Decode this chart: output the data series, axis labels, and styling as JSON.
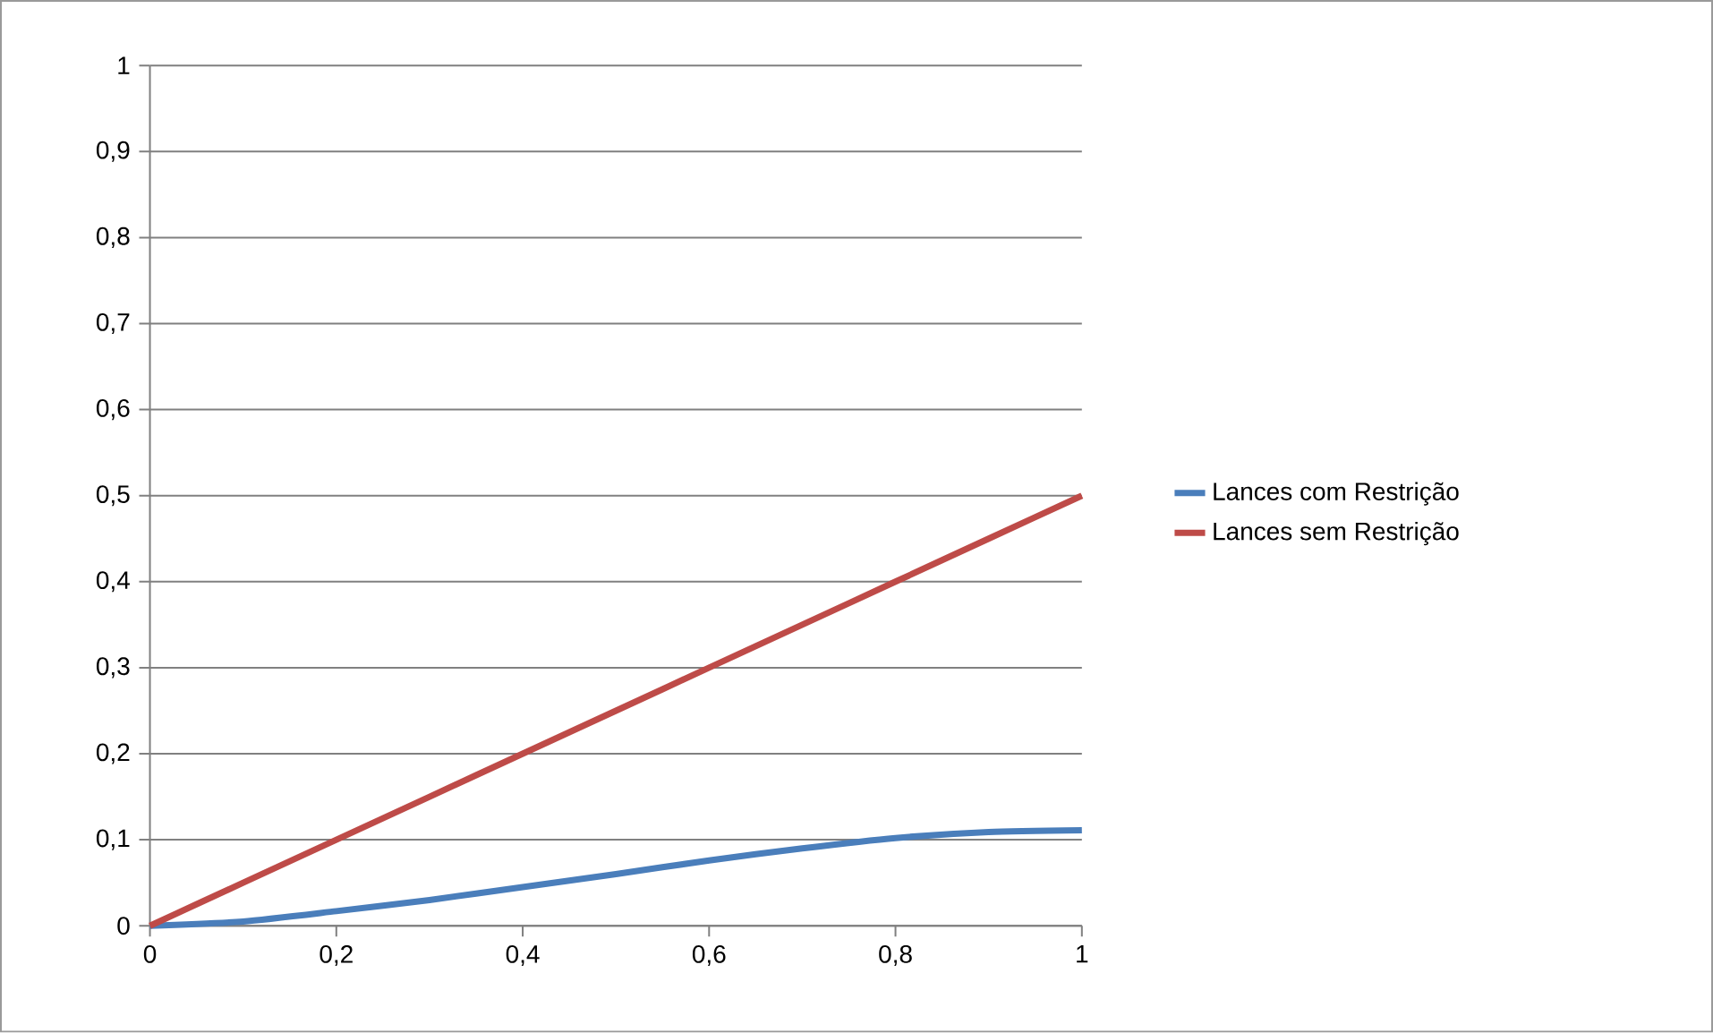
{
  "chart_data": {
    "type": "line",
    "x": [
      0,
      0.1,
      0.2,
      0.3,
      0.4,
      0.5,
      0.6,
      0.7,
      0.8,
      0.9,
      1
    ],
    "series": [
      {
        "name": "Lances com Restrição",
        "color": "#4a7ebb",
        "values": [
          0,
          0.005,
          0.017,
          0.03,
          0.045,
          0.06,
          0.076,
          0.09,
          0.102,
          0.109,
          0.111
        ]
      },
      {
        "name": "Lances sem Restrição",
        "color": "#be4b48",
        "values": [
          0,
          0.05,
          0.1,
          0.15,
          0.2,
          0.25,
          0.3,
          0.35,
          0.4,
          0.45,
          0.5
        ]
      }
    ],
    "xlim": [
      0,
      1
    ],
    "ylim": [
      0,
      1
    ],
    "xticks": [
      0,
      {
        "value": 0.2,
        "label": "0,2"
      },
      {
        "value": 0.4,
        "label": "0,4"
      },
      {
        "value": 0.6,
        "label": "0,6"
      },
      {
        "value": 0.8,
        "label": "0,8"
      },
      1
    ],
    "yticks": [
      0,
      {
        "value": 0.1,
        "label": "0,1"
      },
      {
        "value": 0.2,
        "label": "0,2"
      },
      {
        "value": 0.3,
        "label": "0,3"
      },
      {
        "value": 0.4,
        "label": "0,4"
      },
      {
        "value": 0.5,
        "label": "0,5"
      },
      {
        "value": 0.6,
        "label": "0,6"
      },
      {
        "value": 0.7,
        "label": "0,7"
      },
      {
        "value": 0.8,
        "label": "0,8"
      },
      {
        "value": 0.9,
        "label": "0,9"
      },
      1
    ],
    "grid": "y",
    "legend": "right",
    "marker": "none",
    "line_style": "solid"
  }
}
